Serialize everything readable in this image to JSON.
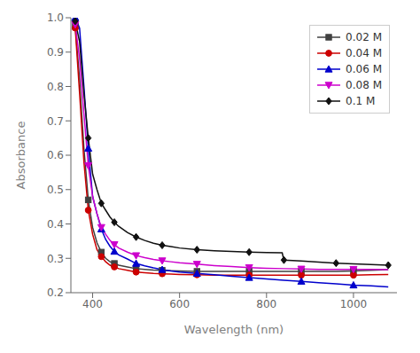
{
  "chart_data": {
    "type": "line",
    "title": "",
    "xlabel": "Wavelength (nm)",
    "ylabel": "Absorbance",
    "xlim": [
      350,
      1100
    ],
    "ylim": [
      0.2,
      1.0
    ],
    "xticks": [
      400,
      600,
      800,
      1000
    ],
    "yticks": [
      0.2,
      0.3,
      0.4,
      0.5,
      0.6,
      0.7,
      0.8,
      0.9,
      {
        "value": 1.0,
        "label": "1.0"
      }
    ],
    "grid": false,
    "legend": "upper right",
    "series": [
      {
        "name": "0.02 M",
        "color": "#404040",
        "marker": "square",
        "x": [
          360,
          370,
          380,
          390,
          400,
          410,
          420,
          430,
          440,
          450,
          460,
          480,
          500,
          520,
          540,
          560,
          580,
          600,
          640,
          680,
          720,
          760,
          800,
          840,
          880,
          920,
          960,
          1000,
          1040,
          1080
        ],
        "values": [
          0.975,
          0.82,
          0.62,
          0.47,
          0.39,
          0.345,
          0.318,
          0.3,
          0.29,
          0.285,
          0.28,
          0.275,
          0.27,
          0.268,
          0.266,
          0.265,
          0.264,
          0.263,
          0.262,
          0.262,
          0.262,
          0.262,
          0.262,
          0.262,
          0.262,
          0.262,
          0.262,
          0.263,
          0.265,
          0.267
        ]
      },
      {
        "name": "0.04 M",
        "color": "#cc0000",
        "marker": "circle",
        "x": [
          360,
          370,
          380,
          390,
          400,
          410,
          420,
          430,
          440,
          450,
          460,
          480,
          500,
          520,
          540,
          560,
          580,
          600,
          640,
          680,
          720,
          760,
          800,
          840,
          880,
          920,
          960,
          1000,
          1040,
          1080
        ],
        "values": [
          0.97,
          0.78,
          0.58,
          0.44,
          0.37,
          0.325,
          0.305,
          0.29,
          0.28,
          0.275,
          0.27,
          0.265,
          0.26,
          0.258,
          0.256,
          0.255,
          0.254,
          0.253,
          0.252,
          0.251,
          0.251,
          0.251,
          0.251,
          0.251,
          0.251,
          0.251,
          0.251,
          0.251,
          0.252,
          0.253
        ]
      },
      {
        "name": "0.06 M",
        "color": "#0000cc",
        "marker": "triangle-up",
        "x": [
          360,
          370,
          380,
          390,
          400,
          410,
          420,
          430,
          440,
          450,
          460,
          480,
          500,
          520,
          540,
          560,
          580,
          600,
          640,
          680,
          720,
          760,
          800,
          840,
          880,
          920,
          960,
          1000,
          1040,
          1080
        ],
        "values": [
          1.0,
          0.97,
          0.8,
          0.62,
          0.48,
          0.43,
          0.385,
          0.355,
          0.335,
          0.32,
          0.31,
          0.298,
          0.285,
          0.278,
          0.272,
          0.267,
          0.263,
          0.26,
          0.256,
          0.252,
          0.248,
          0.244,
          0.24,
          0.236,
          0.233,
          0.229,
          0.226,
          0.222,
          0.22,
          0.217
        ]
      },
      {
        "name": "0.08 M",
        "color": "#cc00cc",
        "marker": "triangle-down",
        "x": [
          360,
          370,
          380,
          390,
          400,
          410,
          420,
          430,
          440,
          450,
          460,
          480,
          500,
          520,
          540,
          560,
          580,
          600,
          640,
          680,
          720,
          760,
          800,
          840,
          880,
          920,
          960,
          1000,
          1040,
          1080
        ],
        "values": [
          0.98,
          0.88,
          0.72,
          0.57,
          0.48,
          0.43,
          0.39,
          0.37,
          0.352,
          0.34,
          0.33,
          0.318,
          0.308,
          0.302,
          0.297,
          0.293,
          0.29,
          0.287,
          0.283,
          0.279,
          0.276,
          0.273,
          0.271,
          0.27,
          0.269,
          0.268,
          0.268,
          0.268,
          0.268,
          0.267
        ]
      },
      {
        "name": "0.1 M",
        "color": "#111111",
        "marker": "diamond",
        "x": [
          360,
          370,
          380,
          390,
          400,
          410,
          420,
          430,
          440,
          450,
          460,
          480,
          500,
          520,
          540,
          560,
          580,
          600,
          640,
          680,
          720,
          760,
          800,
          836,
          840,
          880,
          920,
          960,
          1000,
          1040,
          1080
        ],
        "values": [
          0.99,
          0.93,
          0.78,
          0.65,
          0.545,
          0.5,
          0.46,
          0.44,
          0.42,
          0.405,
          0.393,
          0.375,
          0.362,
          0.352,
          0.344,
          0.338,
          0.334,
          0.33,
          0.325,
          0.322,
          0.32,
          0.318,
          0.317,
          0.316,
          0.295,
          0.292,
          0.289,
          0.286,
          0.284,
          0.282,
          0.28
        ]
      }
    ]
  }
}
